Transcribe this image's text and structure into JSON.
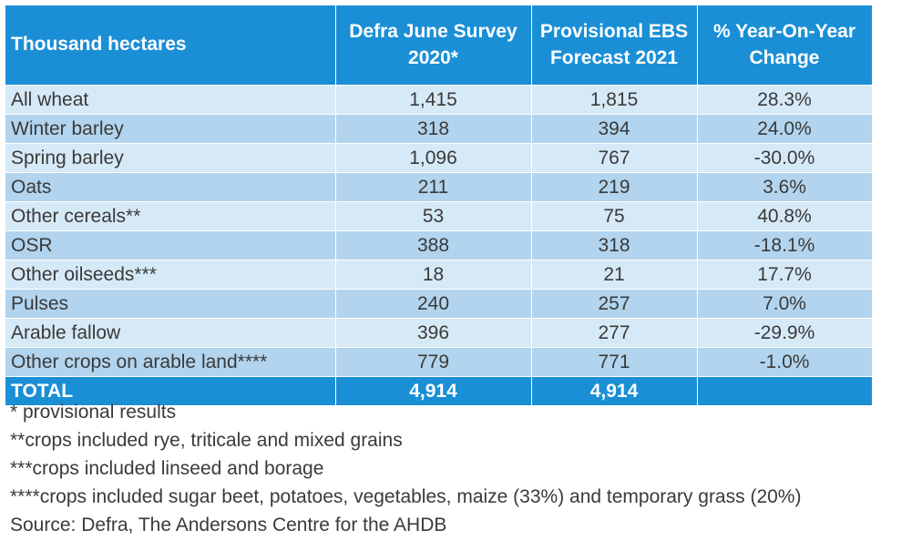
{
  "table": {
    "headers": [
      "Thousand hectares",
      "Defra June Survey 2020*",
      "Provisional EBS Forecast 2021",
      "% Year-On-Year Change"
    ],
    "rows": [
      {
        "label": "All wheat",
        "defra": "1,415",
        "ebs": "1,815",
        "change": "28.3%"
      },
      {
        "label": "Winter barley",
        "defra": "318",
        "ebs": "394",
        "change": "24.0%"
      },
      {
        "label": "Spring barley",
        "defra": "1,096",
        "ebs": "767",
        "change": "-30.0%"
      },
      {
        "label": "Oats",
        "defra": "211",
        "ebs": "219",
        "change": "3.6%"
      },
      {
        "label": "Other cereals**",
        "defra": "53",
        "ebs": "75",
        "change": "40.8%"
      },
      {
        "label": "OSR",
        "defra": "388",
        "ebs": "318",
        "change": "-18.1%"
      },
      {
        "label": "Other oilseeds***",
        "defra": "18",
        "ebs": "21",
        "change": "17.7%"
      },
      {
        "label": "Pulses",
        "defra": "240",
        "ebs": "257",
        "change": "7.0%"
      },
      {
        "label": "Arable fallow",
        "defra": "396",
        "ebs": "277",
        "change": "-29.9%"
      },
      {
        "label": "Other crops on arable land****",
        "defra": "779",
        "ebs": "771",
        "change": "-1.0%"
      }
    ],
    "total": {
      "label": "TOTAL",
      "defra": "4,914",
      "ebs": "4,914",
      "change": ""
    }
  },
  "footnotes": [
    "* provisional results",
    "**crops included rye, triticale and mixed grains",
    "***crops included linseed and borage",
    "****crops included sugar beet, potatoes, vegetables, maize (33%) and temporary grass (20%)",
    "Source: Defra, The Andersons Centre for the AHDB"
  ],
  "colors": {
    "header": "#1a8fd6",
    "row_light": "#d6e9f7",
    "row_dark": "#b2d4ee",
    "text": "#3a3a3a"
  }
}
